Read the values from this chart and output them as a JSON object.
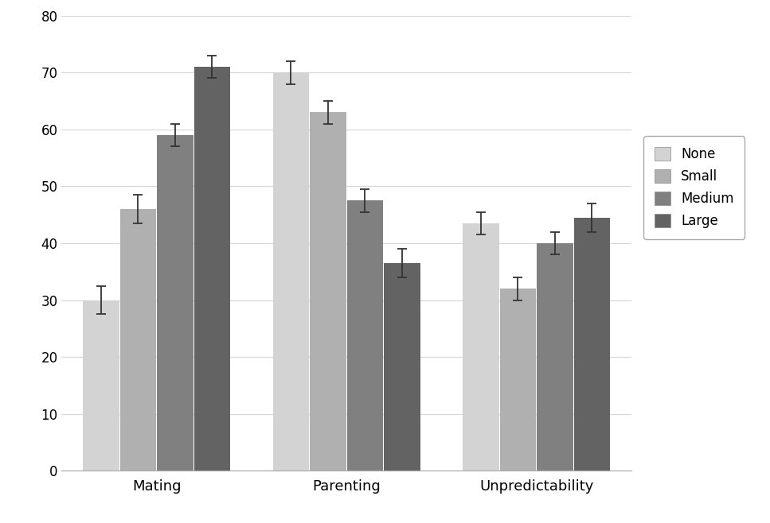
{
  "categories": [
    "Mating",
    "Parenting",
    "Unpredictability"
  ],
  "legend_labels": [
    "None",
    "Small",
    "Medium",
    "Large"
  ],
  "values": [
    [
      30.0,
      46.0,
      59.0,
      71.0
    ],
    [
      70.0,
      63.0,
      47.5,
      36.5
    ],
    [
      43.5,
      32.0,
      40.0,
      44.5
    ]
  ],
  "errors": [
    [
      2.5,
      2.5,
      2.0,
      2.0
    ],
    [
      2.0,
      2.0,
      2.0,
      2.5
    ],
    [
      2.0,
      2.0,
      2.0,
      2.5
    ]
  ],
  "bar_colors": [
    "#d3d3d3",
    "#b0b0b0",
    "#808080",
    "#636363"
  ],
  "bar_width": 0.19,
  "ylim": [
    0,
    80
  ],
  "yticks": [
    0,
    10,
    20,
    30,
    40,
    50,
    60,
    70,
    80
  ],
  "background_color": "#ffffff",
  "grid_color": "#d8d8d8",
  "figsize": [
    9.67,
    6.58
  ],
  "dpi": 100
}
